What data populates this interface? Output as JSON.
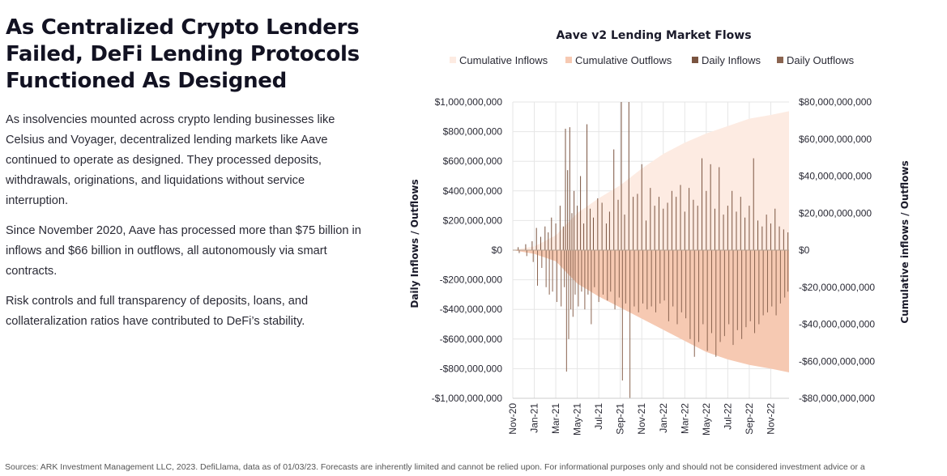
{
  "headline": "As Centralized Crypto Lenders Failed, DeFi Lending Protocols Functioned As Designed",
  "paragraphs": [
    "As insolvencies mounted across crypto lending businesses like Celsius and Voyager, decentralized lending markets like Aave continued to operate as designed. They processed deposits, withdrawals, originations, and liquidations without service interruption.",
    "Since November 2020, Aave has processed more than $75 billion in inflows and $66 billion in outflows, all autonomously via smart contracts.",
    "Risk controls and full transparency of deposits, loans, and collateralization ratios have contributed to DeFi’s stability."
  ],
  "footnote": "Sources: ARK Investment Management LLC, 2023. DefiLlama, data as of 01/03/23. Forecasts are inherently limited and cannot be relied upon. For informational purposes only and should not be considered investment advice or a",
  "colors": {
    "cum_inflows": "#fdebe2",
    "cum_outflows": "#f6c9b2",
    "daily_inflows": "#7a5440",
    "daily_outflows": "#8a6450",
    "grid": "#e6e6e6",
    "axis": "#cccccc"
  },
  "chart_data": {
    "type": "area",
    "title": "Aave v2 Lending Market Flows",
    "legend": [
      "Cumulative Inflows",
      "Cumulative Outflows",
      "Daily Inflows",
      "Daily Outflows"
    ],
    "legend_position": "top",
    "y_left_label": "Daily Inflows / Outflows",
    "y_right_label": "Cumulative inflows / Outflows",
    "y_left_range": [
      -1000000000,
      1000000000
    ],
    "y_right_range": [
      -80000000000,
      80000000000
    ],
    "y_left_ticks": [
      {
        "value": 1000000000,
        "label": "$1,000,000,000"
      },
      {
        "value": 800000000,
        "label": "$800,000,000"
      },
      {
        "value": 600000000,
        "label": "$600,000,000"
      },
      {
        "value": 400000000,
        "label": "$400,000,000"
      },
      {
        "value": 200000000,
        "label": "$200,000,000"
      },
      {
        "value": 0,
        "label": "$0"
      },
      {
        "value": -200000000,
        "label": "-$200,000,000"
      },
      {
        "value": -400000000,
        "label": "-$400,000,000"
      },
      {
        "value": -600000000,
        "label": "-$600,000,000"
      },
      {
        "value": -800000000,
        "label": "-$800,000,000"
      },
      {
        "value": -1000000000,
        "label": "-$1,000,000,000"
      }
    ],
    "y_right_ticks": [
      {
        "value": 80000000000,
        "label": "$80,000,000,000"
      },
      {
        "value": 60000000000,
        "label": "$60,000,000,000"
      },
      {
        "value": 40000000000,
        "label": "$40,000,000,000"
      },
      {
        "value": 20000000000,
        "label": "$20,000,000,000"
      },
      {
        "value": 0,
        "label": "$0"
      },
      {
        "value": -20000000000,
        "label": "-$20,000,000,000"
      },
      {
        "value": -40000000000,
        "label": "-$40,000,000,000"
      },
      {
        "value": -60000000000,
        "label": "-$60,000,000,000"
      },
      {
        "value": -80000000000,
        "label": "-$80,000,000,000"
      }
    ],
    "x_range_months": [
      0,
      25.7
    ],
    "x_ticks": [
      {
        "month": 0,
        "label": "Nov-20"
      },
      {
        "month": 2,
        "label": "Jan-21"
      },
      {
        "month": 4,
        "label": "Mar-21"
      },
      {
        "month": 6,
        "label": "May-21"
      },
      {
        "month": 8,
        "label": "Jul-21"
      },
      {
        "month": 10,
        "label": "Sep-21"
      },
      {
        "month": 12,
        "label": "Nov-21"
      },
      {
        "month": 14,
        "label": "Jan-22"
      },
      {
        "month": 16,
        "label": "Mar-22"
      },
      {
        "month": 18,
        "label": "May-22"
      },
      {
        "month": 20,
        "label": "Jul-22"
      },
      {
        "month": 22,
        "label": "Sep-22"
      },
      {
        "month": 24,
        "label": "Nov-22"
      }
    ],
    "cumulative_inflows": {
      "months": [
        0,
        2,
        4,
        5,
        6,
        8,
        10,
        12,
        14,
        16,
        18,
        20,
        22,
        24,
        25.7
      ],
      "values": [
        0,
        2000000000,
        8000000000,
        14000000000,
        20000000000,
        28000000000,
        35000000000,
        44000000000,
        52000000000,
        58000000000,
        63000000000,
        67000000000,
        71000000000,
        73000000000,
        75000000000
      ]
    },
    "cumulative_outflows": {
      "months": [
        0,
        2,
        4,
        5,
        6,
        8,
        10,
        12,
        14,
        16,
        18,
        20,
        22,
        24,
        25.7
      ],
      "values": [
        0,
        -2000000000,
        -6000000000,
        -12000000000,
        -18000000000,
        -25000000000,
        -31000000000,
        -37000000000,
        -43000000000,
        -49000000000,
        -55000000000,
        -59000000000,
        -62000000000,
        -64000000000,
        -66000000000
      ]
    },
    "daily_inflows": {
      "months": [
        0.5,
        1.2,
        1.8,
        2.2,
        2.6,
        3.0,
        3.3,
        3.6,
        4.0,
        4.4,
        4.7,
        4.9,
        5.1,
        5.3,
        5.5,
        5.7,
        6.0,
        6.3,
        6.6,
        6.9,
        7.2,
        7.5,
        7.9,
        8.3,
        8.7,
        9.0,
        9.4,
        9.8,
        10.1,
        10.4,
        10.8,
        11.2,
        11.6,
        12.0,
        12.4,
        12.8,
        13.2,
        13.6,
        14.0,
        14.4,
        14.8,
        15.2,
        15.6,
        16.0,
        16.4,
        16.8,
        17.2,
        17.6,
        18.0,
        18.4,
        18.8,
        19.2,
        19.6,
        20.0,
        20.4,
        20.8,
        21.2,
        21.6,
        22.0,
        22.4,
        22.8,
        23.2,
        23.6,
        24.0,
        24.4,
        24.8,
        25.2,
        25.6
      ],
      "values": [
        20000000,
        40000000,
        60000000,
        150000000,
        90000000,
        160000000,
        120000000,
        220000000,
        180000000,
        300000000,
        160000000,
        820000000,
        540000000,
        830000000,
        250000000,
        400000000,
        300000000,
        500000000,
        180000000,
        850000000,
        280000000,
        220000000,
        350000000,
        320000000,
        180000000,
        260000000,
        680000000,
        340000000,
        1000000000,
        240000000,
        1000000000,
        360000000,
        380000000,
        580000000,
        200000000,
        420000000,
        300000000,
        360000000,
        280000000,
        320000000,
        400000000,
        360000000,
        440000000,
        260000000,
        420000000,
        340000000,
        300000000,
        620000000,
        400000000,
        580000000,
        280000000,
        560000000,
        240000000,
        300000000,
        400000000,
        260000000,
        360000000,
        220000000,
        300000000,
        620000000,
        200000000,
        160000000,
        240000000,
        180000000,
        280000000,
        160000000,
        140000000,
        120000000
      ]
    },
    "daily_outflows": {
      "months": [
        0.6,
        1.3,
        1.9,
        2.3,
        2.7,
        3.1,
        3.4,
        3.7,
        4.1,
        4.5,
        4.8,
        5.0,
        5.2,
        5.4,
        5.6,
        5.8,
        6.1,
        6.4,
        6.7,
        7.0,
        7.3,
        7.6,
        8.0,
        8.4,
        8.8,
        9.1,
        9.5,
        9.9,
        10.2,
        10.5,
        10.9,
        11.3,
        11.7,
        12.1,
        12.5,
        12.9,
        13.3,
        13.7,
        14.1,
        14.5,
        14.9,
        15.3,
        15.7,
        16.1,
        16.5,
        16.9,
        17.3,
        17.7,
        18.1,
        18.5,
        18.9,
        19.3,
        19.7,
        20.1,
        20.5,
        20.9,
        21.3,
        21.7,
        22.1,
        22.5,
        22.9,
        23.3,
        23.7,
        24.1,
        24.5,
        24.9,
        25.3,
        25.6
      ],
      "values": [
        -20000000,
        -40000000,
        -80000000,
        -240000000,
        -120000000,
        -250000000,
        -300000000,
        -280000000,
        -350000000,
        -380000000,
        -250000000,
        -820000000,
        -600000000,
        -400000000,
        -450000000,
        -300000000,
        -380000000,
        -280000000,
        -400000000,
        -300000000,
        -500000000,
        -250000000,
        -350000000,
        -300000000,
        -340000000,
        -280000000,
        -400000000,
        -320000000,
        -880000000,
        -360000000,
        -1000000000,
        -380000000,
        -420000000,
        -360000000,
        -400000000,
        -380000000,
        -420000000,
        -360000000,
        -340000000,
        -480000000,
        -380000000,
        -500000000,
        -420000000,
        -460000000,
        -600000000,
        -720000000,
        -620000000,
        -500000000,
        -680000000,
        -560000000,
        -720000000,
        -620000000,
        -580000000,
        -500000000,
        -640000000,
        -540000000,
        -600000000,
        -520000000,
        -480000000,
        -560000000,
        -500000000,
        -440000000,
        -420000000,
        -380000000,
        -440000000,
        -360000000,
        -320000000,
        -280000000
      ]
    }
  }
}
